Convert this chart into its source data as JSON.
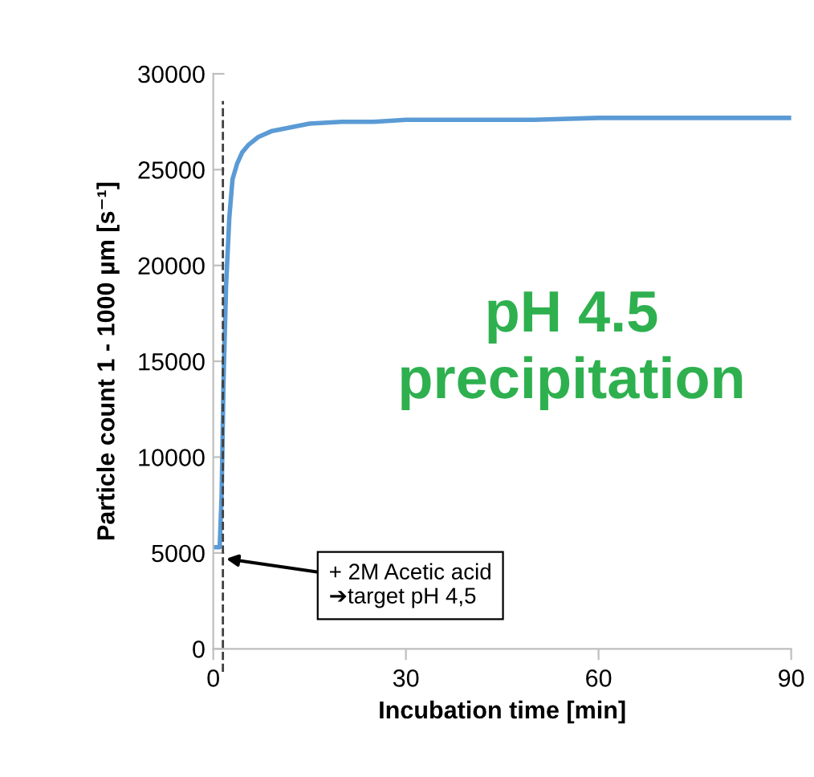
{
  "chart_data": {
    "type": "line",
    "xlabel": "Incubation time [min]",
    "ylabel": "Particle count 1 - 1000 µm [s⁻¹]",
    "x": [
      0,
      0.5,
      1.0,
      1.3,
      1.6,
      2.0,
      2.5,
      3.0,
      3.7,
      4.5,
      5.5,
      7,
      9,
      12,
      15,
      20,
      25,
      30,
      40,
      50,
      60,
      70,
      80,
      90
    ],
    "series": [
      {
        "color": "#5b9bd5",
        "values": [
          5300,
          5300,
          5300,
          8000,
          14000,
          19000,
          22500,
          24500,
          25300,
          25900,
          26300,
          26700,
          27000,
          27200,
          27400,
          27500,
          27500,
          27600,
          27600,
          27600,
          27700,
          27700,
          27700,
          27700
        ]
      }
    ],
    "xlim": [
      0,
      90
    ],
    "xticks": [
      0,
      30,
      60,
      90
    ],
    "ylim": [
      0,
      30000
    ],
    "yticks": [
      0,
      5000,
      10000,
      15000,
      20000,
      25000,
      30000
    ],
    "grid": false,
    "legend": false,
    "marker": "none",
    "line_style": "solid",
    "ref_lines": [
      {
        "axis": "x",
        "value": 1.5,
        "color": "#404040",
        "line_style": "dashed"
      }
    ],
    "annotations": [
      "pH 4.5\nprecipitation",
      {
        "text": "+ 2M Acetic acid\n➔target pH 4,5",
        "x": 2,
        "y": 4700
      }
    ]
  }
}
